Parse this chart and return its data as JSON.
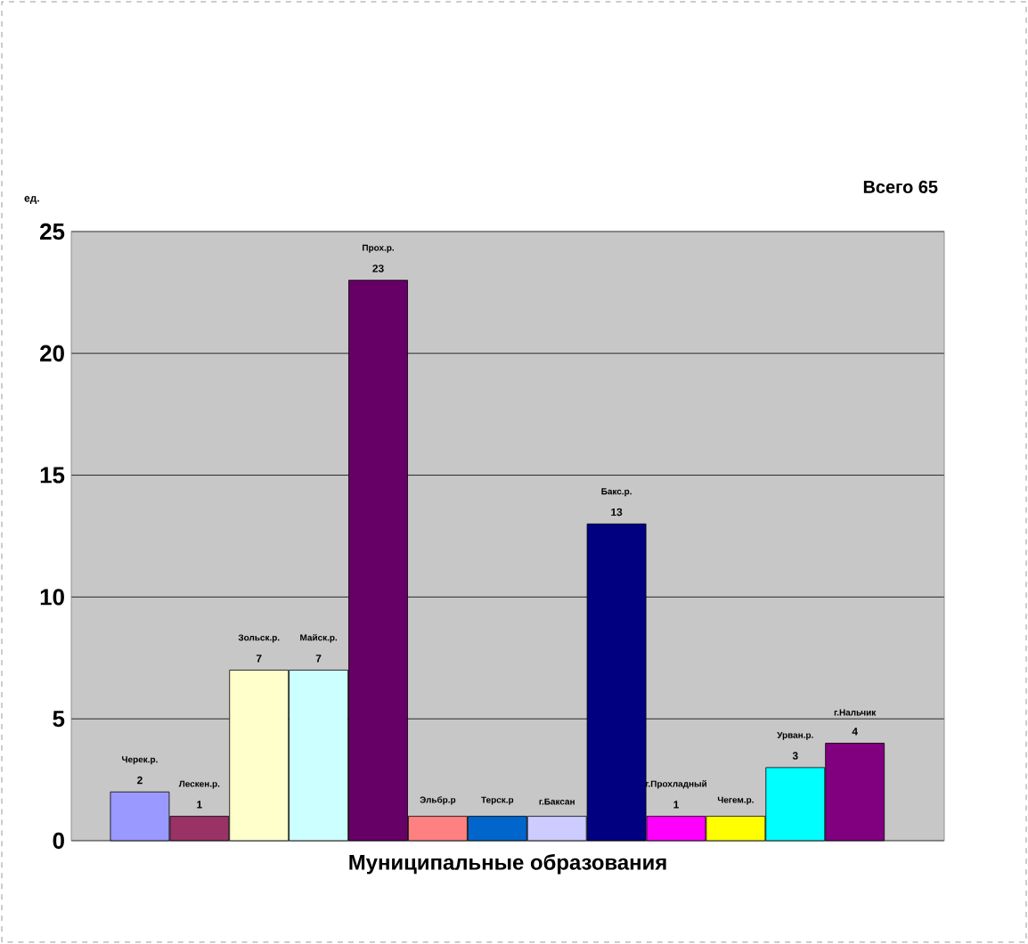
{
  "chart_data": {
    "type": "bar",
    "title": "Всего 65",
    "ylabel": "ед.",
    "xlabel": "Муниципальные образования",
    "categories": [
      "Черек.р.",
      "Лескен.р.",
      "Зольск.р.",
      "Майск.р.",
      "Прох.р.",
      "Эльбр.р",
      "Терск.р",
      "г.Баксан",
      "Бакс.р.",
      "г.Прохладный",
      "Чегем.р.",
      "Урван.р.",
      "г.Нальчик"
    ],
    "values": [
      2,
      1,
      7,
      7,
      23,
      1,
      1,
      1,
      13,
      1,
      1,
      3,
      4
    ],
    "value_labels": [
      "2",
      "1",
      "7",
      "7",
      "23",
      null,
      null,
      null,
      "13",
      "1",
      null,
      "3",
      "4"
    ],
    "colors": [
      "#9999ff",
      "#993366",
      "#ffffcc",
      "#ccffff",
      "#660066",
      "#ff8080",
      "#0066cc",
      "#ccccff",
      "#000080",
      "#ff00ff",
      "#ffff00",
      "#00ffff",
      "#800080"
    ],
    "ylim": [
      0,
      25
    ],
    "yticks": [
      0,
      5,
      10,
      15,
      20,
      25
    ],
    "grid": "y"
  }
}
